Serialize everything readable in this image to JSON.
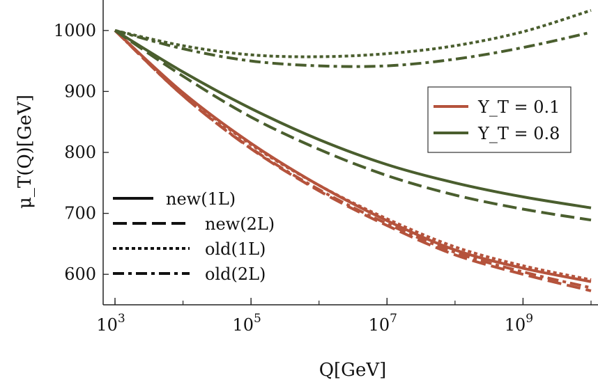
{
  "chart_data": {
    "type": "line",
    "x_scale": "log",
    "xlim": [
      1000,
      10000000000
    ],
    "ylim": [
      550,
      1050
    ],
    "x_ticks": [
      {
        "value": 1000,
        "base": "10",
        "exp": "3"
      },
      {
        "value": 100000,
        "base": "10",
        "exp": "5"
      },
      {
        "value": 10000000,
        "base": "10",
        "exp": "7"
      },
      {
        "value": 1000000000,
        "base": "10",
        "exp": "9"
      }
    ],
    "y_ticks": [
      600,
      700,
      800,
      900,
      1000
    ],
    "xlabel": "Q[GeV]",
    "ylabel": "μ_T(Q)[GeV]",
    "colors": {
      "Y_T = 0.1": "#b5533c",
      "Y_T = 0.8": "#4a5e2e"
    },
    "color_legend": [
      "Y_T = 0.1",
      "Y_T = 0.8"
    ],
    "style_legend": [
      {
        "label": "new(1L)",
        "dash": "solid"
      },
      {
        "label": "new(2L)",
        "dash": "dashed"
      },
      {
        "label": "old(1L)",
        "dash": "dotted"
      },
      {
        "label": "old(2L)",
        "dash": "dashdot"
      }
    ],
    "series": [
      {
        "group": "Y_T = 0.1",
        "style": "new(1L)",
        "x": [
          1000,
          10000,
          100000,
          1000000,
          10000000,
          100000000,
          1000000000,
          10000000000
        ],
        "y": [
          1000,
          898,
          815,
          746,
          688,
          640,
          610,
          588
        ]
      },
      {
        "group": "Y_T = 0.1",
        "style": "new(2L)",
        "x": [
          1000,
          10000,
          100000,
          1000000,
          10000000,
          100000000,
          1000000000,
          10000000000
        ],
        "y": [
          1000,
          893,
          806,
          737,
          680,
          632,
          600,
          573
        ]
      },
      {
        "group": "Y_T = 0.1",
        "style": "old(1L)",
        "x": [
          1000,
          10000,
          100000,
          1000000,
          10000000,
          100000000,
          1000000000,
          10000000000
        ],
        "y": [
          1000,
          897,
          813,
          746,
          691,
          645,
          614,
          591
        ]
      },
      {
        "group": "Y_T = 0.1",
        "style": "old(2L)",
        "x": [
          1000,
          10000,
          100000,
          1000000,
          10000000,
          100000000,
          1000000000,
          10000000000
        ],
        "y": [
          1000,
          893,
          807,
          739,
          683,
          636,
          604,
          578
        ]
      },
      {
        "group": "Y_T = 0.8",
        "style": "new(1L)",
        "x": [
          1000,
          10000,
          100000,
          1000000,
          10000000,
          100000000,
          1000000000,
          10000000000
        ],
        "y": [
          1000,
          932,
          872,
          821,
          780,
          750,
          727,
          709
        ]
      },
      {
        "group": "Y_T = 0.8",
        "style": "new(2L)",
        "x": [
          1000,
          10000,
          100000,
          1000000,
          10000000,
          100000000,
          1000000000,
          10000000000
        ],
        "y": [
          1000,
          925,
          858,
          805,
          762,
          730,
          707,
          689
        ]
      },
      {
        "group": "Y_T = 0.8",
        "style": "old(1L)",
        "x": [
          1000,
          10000,
          100000,
          1000000,
          10000000,
          100000000,
          1000000000,
          10000000000
        ],
        "y": [
          1000,
          975,
          960,
          957,
          962,
          975,
          998,
          1033
        ]
      },
      {
        "group": "Y_T = 0.8",
        "style": "old(2L)",
        "x": [
          1000,
          10000,
          100000,
          1000000,
          10000000,
          100000000,
          1000000000,
          10000000000
        ],
        "y": [
          1000,
          970,
          950,
          942,
          942,
          953,
          972,
          997
        ]
      }
    ]
  }
}
